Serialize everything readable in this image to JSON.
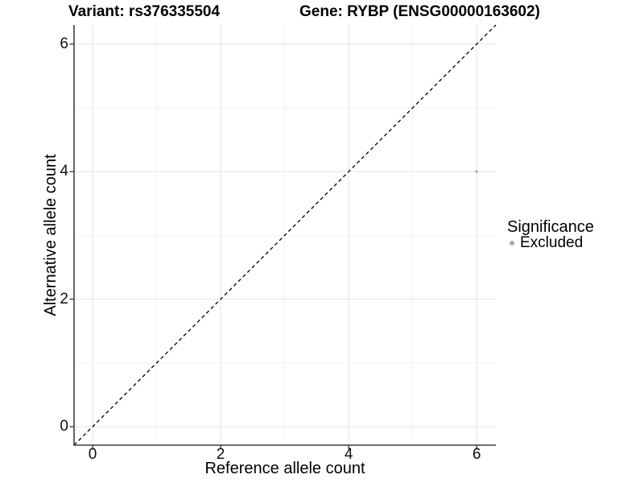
{
  "chart_data": {
    "type": "scatter",
    "titles": {
      "left": "Variant: rs376335504",
      "right": "Gene: RYBP (ENSG00000163602)"
    },
    "xlabel": "Reference allele count",
    "ylabel": "Alternative allele count",
    "xlim": [
      -0.29,
      6.3
    ],
    "ylim": [
      -0.29,
      6.3
    ],
    "x_ticks": [
      0,
      2,
      4,
      6
    ],
    "y_ticks": [
      0,
      2,
      4,
      6
    ],
    "x_minor_ticks": [
      1,
      3,
      5
    ],
    "y_minor_ticks": [
      1,
      3,
      5
    ],
    "grid": "major and minor gridlines on white panel",
    "reference_line": {
      "type": "identity",
      "slope": 1,
      "intercept": 0,
      "style": "dashed",
      "color": "#000000"
    },
    "series": [
      {
        "name": "Excluded",
        "color": "#b3b3b3",
        "points": [
          {
            "x": 6,
            "y": 4
          }
        ]
      }
    ],
    "legend": {
      "title": "Significance",
      "position": "right",
      "entries": [
        {
          "label": "Excluded",
          "color": "#adadad"
        }
      ]
    }
  },
  "colors": {
    "background": "#ffffff",
    "grid_major": "#e6e6e6",
    "grid_minor": "#f3f3f3",
    "axis_line": "#3f3f3f",
    "tick_label": "#111111",
    "point": "#b3b3b3",
    "dashed_line": "#000000"
  }
}
